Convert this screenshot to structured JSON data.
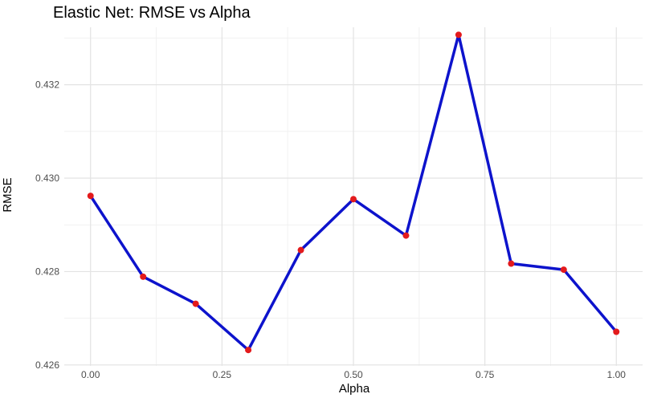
{
  "chart_data": {
    "type": "line",
    "title": "Elastic Net: RMSE vs Alpha",
    "xlabel": "Alpha",
    "ylabel": "RMSE",
    "xlim": [
      -0.05,
      1.05
    ],
    "ylim": [
      0.42598,
      0.43323
    ],
    "x_ticks": [
      0.0,
      0.25,
      0.5,
      0.75,
      1.0
    ],
    "x_tick_labels": [
      "0.00",
      "0.25",
      "0.50",
      "0.75",
      "1.00"
    ],
    "y_ticks": [
      0.426,
      0.428,
      0.43,
      0.432
    ],
    "y_tick_labels": [
      "0.426",
      "0.428",
      "0.430",
      "0.432"
    ],
    "x_minor_ticks": [
      0.125,
      0.375,
      0.625,
      0.875
    ],
    "y_minor_ticks": [
      0.427,
      0.429,
      0.431,
      0.433
    ],
    "grid": true,
    "series": [
      {
        "line_color": "#0d13cc",
        "point_color": "#e31a1c",
        "points": [
          {
            "x": 0.0,
            "y": 0.42962
          },
          {
            "x": 0.1,
            "y": 0.42789
          },
          {
            "x": 0.2,
            "y": 0.42731
          },
          {
            "x": 0.3,
            "y": 0.42632
          },
          {
            "x": 0.4,
            "y": 0.42846
          },
          {
            "x": 0.5,
            "y": 0.42955
          },
          {
            "x": 0.6,
            "y": 0.42877
          },
          {
            "x": 0.7,
            "y": 0.43307
          },
          {
            "x": 0.8,
            "y": 0.42817
          },
          {
            "x": 0.9,
            "y": 0.42804
          },
          {
            "x": 1.0,
            "y": 0.42671
          }
        ]
      }
    ]
  }
}
